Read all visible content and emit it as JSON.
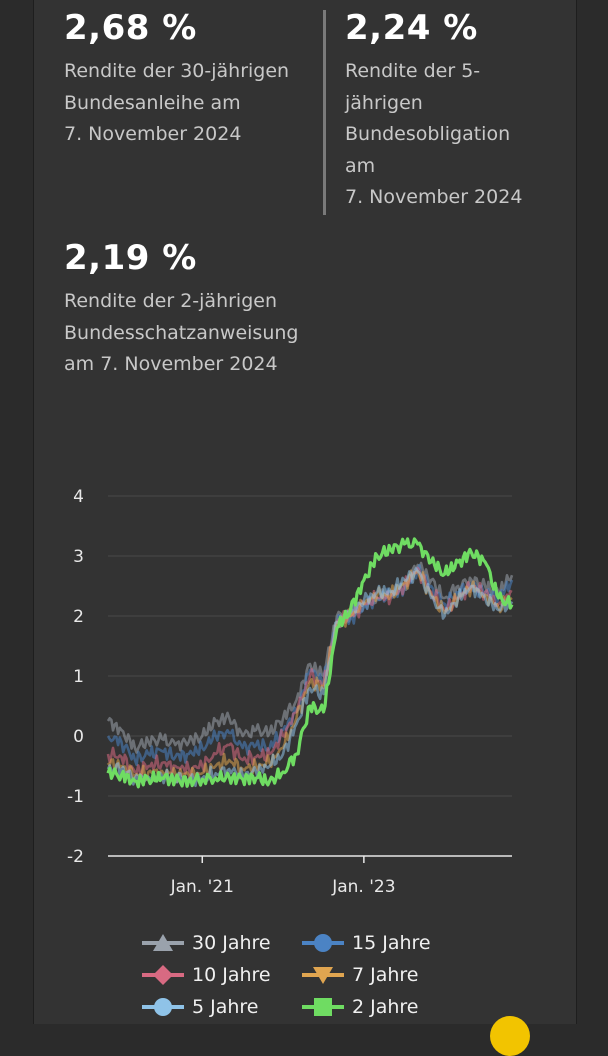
{
  "kpis": [
    {
      "value": "2,68 %",
      "description": "Rendite der 30-jährigen\nBundesanleihe am\n7. November 2024"
    },
    {
      "value": "2,24 %",
      "description": "Rendite der 5-\njährigen\nBundesobligation\nam\n7. November 2024"
    },
    {
      "value": "2,19 %",
      "description": "Rendite der 2-jährigen\nBundesschatzanweisung\nam 7. November 2024"
    }
  ],
  "chart_data": {
    "type": "line",
    "ylim": [
      -2,
      4
    ],
    "y_ticks": [
      "4",
      "3",
      "2",
      "1",
      "0",
      "-1",
      "-2"
    ],
    "x_ticks": [
      "Jan. '21",
      "Jan. '23"
    ],
    "xlim": [
      "2019-11",
      "2024-11"
    ],
    "grid": true,
    "legend_position": "bottom",
    "x": [
      "2019-11",
      "2020-01",
      "2020-03",
      "2020-05",
      "2020-07",
      "2020-09",
      "2020-11",
      "2021-01",
      "2021-03",
      "2021-05",
      "2021-07",
      "2021-09",
      "2021-11",
      "2022-01",
      "2022-03",
      "2022-05",
      "2022-07",
      "2022-09",
      "2022-11",
      "2023-01",
      "2023-03",
      "2023-05",
      "2023-07",
      "2023-09",
      "2023-11",
      "2024-01",
      "2024-03",
      "2024-05",
      "2024-07",
      "2024-09",
      "2024-11"
    ],
    "series": [
      {
        "name": "30 Jahre",
        "color": "#9aa2ac",
        "marker": "triangle-up",
        "values": [
          0.25,
          0.1,
          -0.2,
          -0.1,
          -0.05,
          -0.15,
          -0.1,
          0.0,
          0.25,
          0.3,
          0.0,
          0.1,
          0.05,
          0.3,
          0.6,
          1.2,
          1.0,
          2.0,
          2.0,
          2.2,
          2.3,
          2.4,
          2.5,
          2.85,
          2.6,
          2.3,
          2.5,
          2.6,
          2.5,
          2.4,
          2.68
        ]
      },
      {
        "name": "15 Jahre",
        "color": "#4b83c4",
        "marker": "circle",
        "values": [
          0.0,
          -0.1,
          -0.4,
          -0.3,
          -0.25,
          -0.35,
          -0.3,
          -0.2,
          0.0,
          0.05,
          -0.2,
          -0.15,
          -0.2,
          0.1,
          0.4,
          1.1,
          0.9,
          1.9,
          1.95,
          2.15,
          2.3,
          2.35,
          2.45,
          2.8,
          2.5,
          2.2,
          2.4,
          2.5,
          2.4,
          2.3,
          2.6
        ]
      },
      {
        "name": "10 Jahre",
        "color": "#d86a82",
        "marker": "diamond",
        "values": [
          -0.3,
          -0.35,
          -0.6,
          -0.5,
          -0.45,
          -0.5,
          -0.55,
          -0.5,
          -0.3,
          -0.15,
          -0.4,
          -0.35,
          -0.3,
          0.0,
          0.4,
          1.0,
          0.85,
          1.9,
          2.0,
          2.2,
          2.3,
          2.3,
          2.5,
          2.8,
          2.4,
          2.1,
          2.3,
          2.5,
          2.4,
          2.2,
          2.4
        ]
      },
      {
        "name": "7 Jahre",
        "color": "#e0a550",
        "marker": "triangle-down",
        "values": [
          -0.45,
          -0.5,
          -0.65,
          -0.6,
          -0.58,
          -0.62,
          -0.65,
          -0.62,
          -0.5,
          -0.4,
          -0.55,
          -0.5,
          -0.45,
          -0.2,
          0.3,
          0.9,
          0.8,
          1.9,
          2.0,
          2.2,
          2.35,
          2.35,
          2.55,
          2.75,
          2.35,
          2.05,
          2.3,
          2.5,
          2.35,
          2.15,
          2.3
        ]
      },
      {
        "name": "5 Jahre",
        "color": "#8fc3e8",
        "marker": "circle",
        "values": [
          -0.55,
          -0.55,
          -0.7,
          -0.68,
          -0.66,
          -0.7,
          -0.72,
          -0.7,
          -0.62,
          -0.55,
          -0.65,
          -0.6,
          -0.5,
          -0.3,
          0.2,
          0.8,
          0.7,
          1.9,
          2.05,
          2.25,
          2.4,
          2.4,
          2.6,
          2.75,
          2.3,
          2.0,
          2.3,
          2.5,
          2.3,
          2.1,
          2.24
        ]
      },
      {
        "name": "2 Jahre",
        "color": "#6fdc62",
        "marker": "square",
        "values": [
          -0.62,
          -0.65,
          -0.75,
          -0.72,
          -0.7,
          -0.73,
          -0.75,
          -0.72,
          -0.7,
          -0.68,
          -0.72,
          -0.7,
          -0.75,
          -0.6,
          -0.3,
          0.5,
          0.4,
          1.8,
          2.1,
          2.6,
          3.0,
          3.1,
          3.2,
          3.2,
          2.9,
          2.7,
          2.9,
          3.05,
          2.9,
          2.3,
          2.19
        ]
      }
    ]
  }
}
